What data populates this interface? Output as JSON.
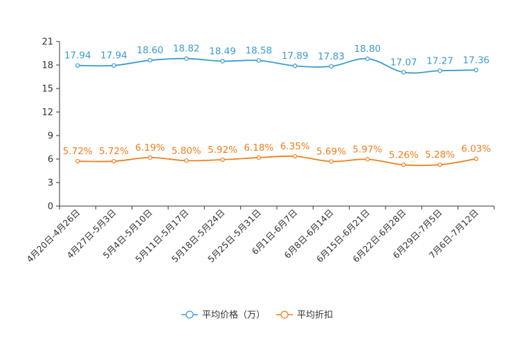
{
  "chart_data": {
    "type": "line",
    "title": "",
    "xlabel": "",
    "ylabel": "",
    "ylim": [
      0,
      21
    ],
    "yticks": [
      0,
      3,
      6,
      9,
      12,
      15,
      18,
      21
    ],
    "grid": false,
    "legend_position": "bottom-center",
    "categories": [
      "4月20日-4月26日",
      "4月27日-5月3日",
      "5月4日-5月10日",
      "5月11日-5月17日",
      "5月18日-5月24日",
      "5月25日-5月31日",
      "6月1日-6月7日",
      "6月8日-6月14日",
      "6月15日-6月21日",
      "6月22日-6月28日",
      "6月29日-7月5日",
      "7月6日-7月12日"
    ],
    "series": [
      {
        "name": "平均价格（万）",
        "color": "#3a9bd0",
        "values": [
          17.94,
          17.94,
          18.6,
          18.82,
          18.49,
          18.58,
          17.89,
          17.83,
          18.8,
          17.07,
          17.27,
          17.36
        ],
        "labels": [
          "17.94",
          "17.94",
          "18.60",
          "18.82",
          "18.49",
          "18.58",
          "17.89",
          "17.83",
          "18.80",
          "17.07",
          "17.27",
          "17.36"
        ]
      },
      {
        "name": "平均折扣",
        "color": "#f07d1a",
        "values": [
          5.72,
          5.72,
          6.19,
          5.8,
          5.92,
          6.18,
          6.35,
          5.69,
          5.97,
          5.26,
          5.28,
          6.03
        ],
        "labels": [
          "5.72%",
          "5.72%",
          "6.19%",
          "5.80%",
          "5.92%",
          "6.18%",
          "6.35%",
          "5.69%",
          "5.97%",
          "5.26%",
          "5.28%",
          "6.03%"
        ]
      }
    ]
  }
}
